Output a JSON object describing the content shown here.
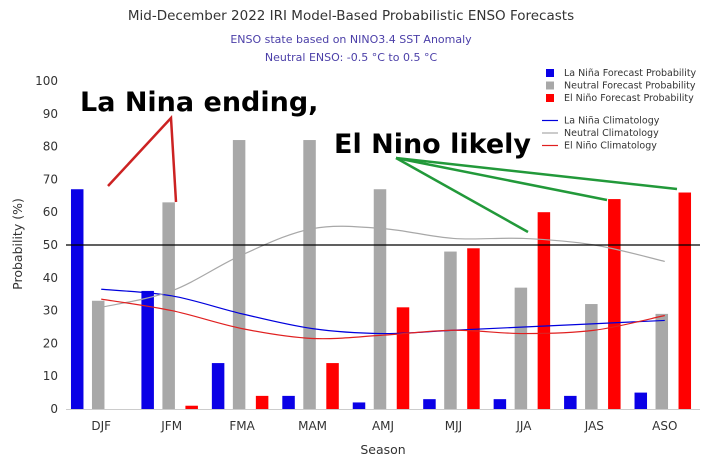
{
  "chart_data": {
    "type": "bar",
    "title": "Mid-December 2022 IRI Model-Based Probabilistic ENSO Forecasts",
    "subtitle_lines": [
      "ENSO state based on NINO3.4 SST Anomaly",
      "Neutral ENSO: -0.5 °C to 0.5 °C"
    ],
    "xlabel": "Season",
    "ylabel": "Probability (%)",
    "ylim": [
      0,
      100
    ],
    "yticks": [
      0,
      10,
      20,
      30,
      40,
      50,
      60,
      70,
      80,
      90,
      100
    ],
    "reference_line": 50,
    "grid": false,
    "legend_position": "top-right",
    "categories": [
      "DJF",
      "JFM",
      "FMA",
      "MAM",
      "AMJ",
      "MJJ",
      "JJA",
      "JAS",
      "ASO"
    ],
    "series": [
      {
        "name": "La Niña Forecast Probability",
        "color": "#0a00e6",
        "values": [
          67,
          36,
          14,
          4,
          2,
          3,
          3,
          4,
          5
        ]
      },
      {
        "name": "Neutral Forecast Probability",
        "color": "#a8a8a8",
        "values": [
          33,
          63,
          82,
          82,
          67,
          48,
          37,
          32,
          29
        ]
      },
      {
        "name": "El Niño Forecast Probability",
        "color": "#ff0000",
        "values": [
          0,
          1,
          4,
          14,
          31,
          49,
          60,
          64,
          66
        ]
      }
    ],
    "climatology": [
      {
        "name": "La Niña Climatology",
        "color": "#0000dd",
        "values": [
          36.5,
          34.5,
          29,
          24.5,
          23,
          24,
          25,
          26,
          27
        ]
      },
      {
        "name": "Neutral Climatology",
        "color": "#a8a8a8",
        "values": [
          31,
          36,
          47,
          55,
          55,
          52,
          52,
          50,
          45
        ]
      },
      {
        "name": "El Niño Climatology",
        "color": "#e02020",
        "values": [
          33.5,
          30,
          24.5,
          21.5,
          22.5,
          24,
          23,
          24,
          28.5
        ]
      }
    ],
    "annotations": [
      {
        "text": "La Nina ending,",
        "color": "#cc2222"
      },
      {
        "text": "El Nino likely",
        "color": "#22993a"
      }
    ]
  }
}
